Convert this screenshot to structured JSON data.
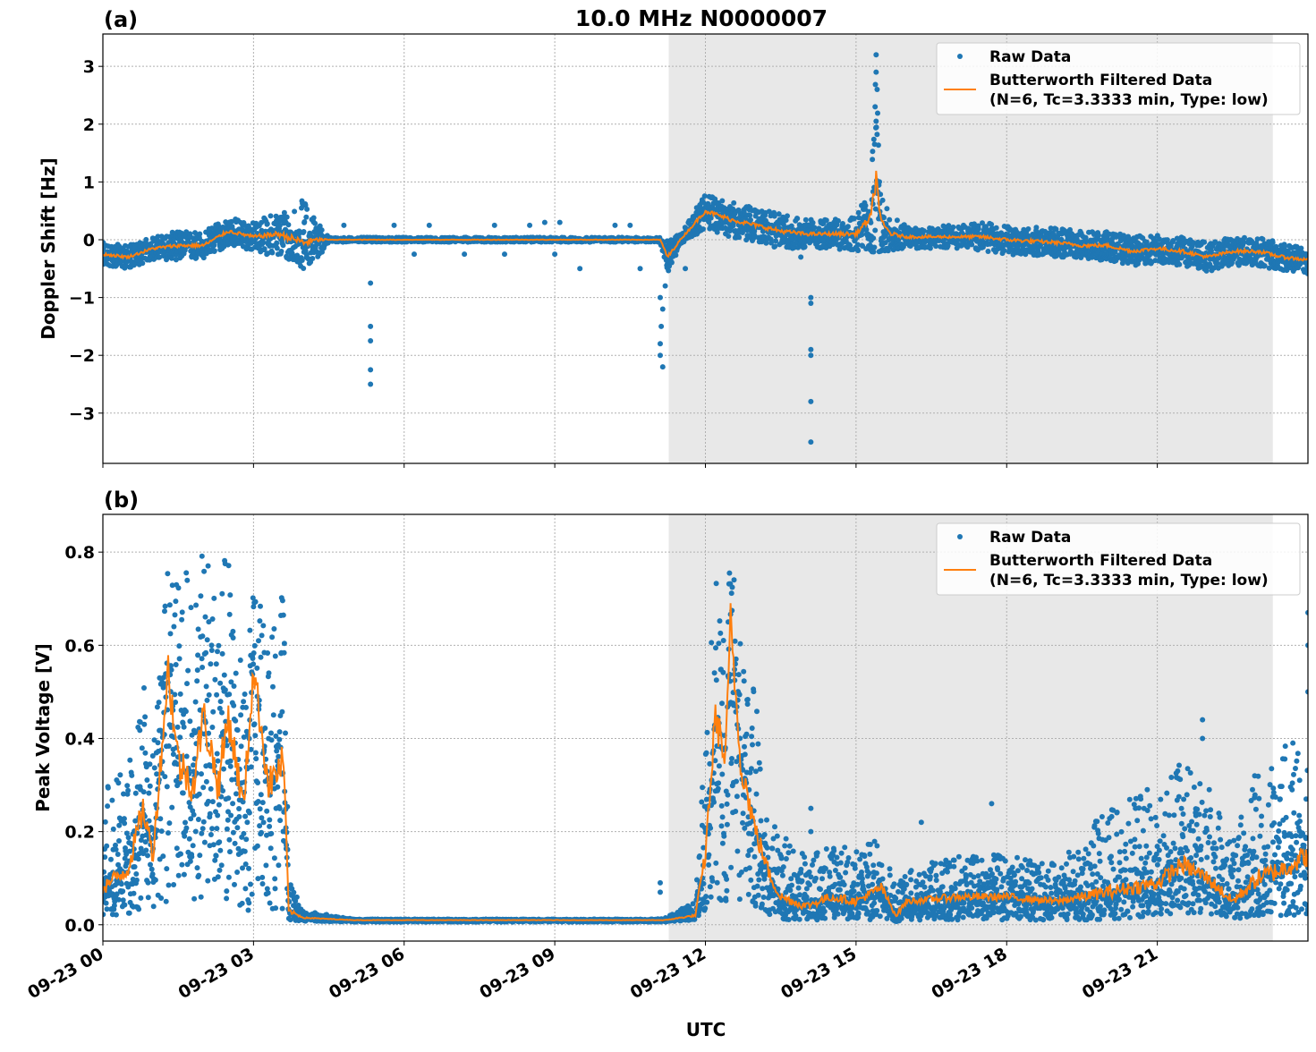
{
  "chart_data": {
    "type": "scatter+line",
    "title": "10.0 MHz N0000007",
    "xlabel": "UTC",
    "x_unit": "hours since 09-23 00 UTC",
    "xlim": [
      0,
      24
    ],
    "xticks": [
      0,
      3,
      6,
      9,
      12,
      15,
      18,
      21
    ],
    "xtick_labels": [
      "09-23 00",
      "09-23 03",
      "09-23 06",
      "09-23 09",
      "09-23 12",
      "09-23 15",
      "09-23 18",
      "09-23 21"
    ],
    "shaded_region": [
      11.27,
      23.3
    ],
    "colors": {
      "raw": "#1f77b4",
      "filtered": "#ff7f0e",
      "shade": "#e8e8e8",
      "grid": "#b0b0b0"
    },
    "grid": true,
    "legend_placement": "top-right",
    "legend": [
      "Raw Data",
      "Butterworth Filtered Data",
      "(N=6, Tc=3.3333 min, Type: low)"
    ],
    "panels": [
      {
        "label": "(a)",
        "ylabel": "Doppler Shift [Hz]",
        "ylim": [
          -3.87,
          3.56
        ],
        "yticks": [
          -3,
          -2,
          -1,
          0,
          1,
          2,
          3
        ],
        "ytick_labels": [
          "−3",
          "−2",
          "−1",
          "0",
          "1",
          "2",
          "3"
        ],
        "t": [
          0,
          0.5,
          1,
          1.5,
          2,
          2.5,
          3,
          3.5,
          4,
          4.3,
          4.5,
          5,
          6,
          7,
          8,
          9,
          10,
          11,
          11.1,
          11.25,
          11.5,
          12,
          12.5,
          13,
          13.5,
          14,
          14.5,
          15,
          15.3,
          15.4,
          15.5,
          15.7,
          16,
          17,
          17.5,
          18,
          19,
          19.5,
          20,
          20.5,
          21,
          21.5,
          22,
          22.5,
          23,
          23.5,
          24
        ],
        "filtered": [
          -0.25,
          -0.3,
          -0.15,
          -0.1,
          -0.1,
          0.15,
          0.05,
          0.1,
          -0.05,
          0.0,
          0.0,
          0.0,
          0.0,
          0.0,
          0.0,
          0.0,
          0.0,
          0.0,
          0.0,
          -0.3,
          0.0,
          0.5,
          0.35,
          0.25,
          0.15,
          0.1,
          0.1,
          0.1,
          0.4,
          1.1,
          0.3,
          0.1,
          0.05,
          0.05,
          0.05,
          0.0,
          -0.05,
          -0.1,
          -0.1,
          -0.2,
          -0.15,
          -0.2,
          -0.3,
          -0.2,
          -0.2,
          -0.3,
          -0.35
        ],
        "raw_low": [
          -0.45,
          -0.5,
          -0.35,
          -0.35,
          -0.35,
          -0.1,
          -0.2,
          -0.3,
          -0.5,
          -0.3,
          -0.04,
          -0.04,
          -0.04,
          -0.04,
          -0.04,
          -0.04,
          -0.04,
          -0.04,
          -0.04,
          -0.6,
          -0.1,
          0.2,
          0.05,
          -0.05,
          -0.15,
          -0.15,
          -0.15,
          -0.2,
          -0.2,
          -0.3,
          -0.2,
          -0.2,
          -0.15,
          -0.15,
          -0.2,
          -0.25,
          -0.3,
          -0.35,
          -0.35,
          -0.45,
          -0.4,
          -0.45,
          -0.55,
          -0.45,
          -0.45,
          -0.55,
          -0.6
        ],
        "raw_high": [
          -0.05,
          -0.1,
          0.05,
          0.15,
          0.15,
          0.4,
          0.3,
          0.5,
          0.7,
          0.3,
          0.04,
          0.04,
          0.04,
          0.04,
          0.04,
          0.04,
          0.04,
          0.04,
          0.04,
          0.0,
          0.1,
          0.8,
          0.65,
          0.55,
          0.45,
          0.35,
          0.35,
          0.4,
          1.0,
          3.0,
          0.8,
          0.4,
          0.25,
          0.25,
          0.3,
          0.25,
          0.2,
          0.15,
          0.15,
          0.05,
          0.1,
          0.05,
          -0.05,
          0.05,
          0.05,
          -0.05,
          -0.1
        ],
        "outliers": [
          [
            5.33,
            -2.5
          ],
          [
            5.33,
            -2.25
          ],
          [
            5.33,
            -1.75
          ],
          [
            5.33,
            -1.5
          ],
          [
            5.33,
            -0.75
          ],
          [
            11.15,
            -2.2
          ],
          [
            11.1,
            -2.0
          ],
          [
            11.1,
            -1.8
          ],
          [
            11.12,
            -1.5
          ],
          [
            11.15,
            -1.2
          ],
          [
            11.1,
            -1.0
          ],
          [
            11.2,
            -0.8
          ],
          [
            14.1,
            -3.5
          ],
          [
            14.1,
            -2.8
          ],
          [
            14.1,
            -2.0
          ],
          [
            14.1,
            -1.9
          ],
          [
            14.1,
            -1.1
          ],
          [
            14.1,
            -1.0
          ],
          [
            15.4,
            3.2
          ],
          [
            15.4,
            2.9
          ],
          [
            15.42,
            2.6
          ],
          [
            15.38,
            2.3
          ],
          [
            4.8,
            0.25
          ],
          [
            5.8,
            0.25
          ],
          [
            6.5,
            0.25
          ],
          [
            7.2,
            -0.25
          ],
          [
            7.8,
            0.25
          ],
          [
            8.5,
            0.25
          ],
          [
            8.8,
            0.3
          ],
          [
            9.1,
            0.3
          ],
          [
            9.5,
            -0.5
          ],
          [
            10.2,
            0.25
          ],
          [
            10.5,
            0.25
          ],
          [
            6.2,
            -0.25
          ],
          [
            8.0,
            -0.25
          ],
          [
            9.0,
            -0.25
          ],
          [
            10.7,
            -0.5
          ],
          [
            11.6,
            -0.5
          ],
          [
            13.9,
            -0.3
          ]
        ]
      },
      {
        "label": "(b)",
        "ylabel": "Peak Voltage [V]",
        "ylim": [
          -0.035,
          0.881
        ],
        "yticks": [
          0.0,
          0.2,
          0.4,
          0.6,
          0.8
        ],
        "ytick_labels": [
          "0.0",
          "0.2",
          "0.4",
          "0.6",
          "0.8"
        ],
        "t": [
          0,
          0.5,
          0.8,
          1,
          1.3,
          1.5,
          1.8,
          2,
          2.3,
          2.5,
          2.8,
          3,
          3.3,
          3.6,
          3.7,
          4,
          5,
          6,
          7,
          8,
          9,
          10,
          11,
          11.2,
          11.8,
          12,
          12.2,
          12.4,
          12.5,
          12.7,
          13,
          13.3,
          13.5,
          14,
          14.5,
          15,
          15.5,
          15.8,
          16,
          17,
          18,
          19,
          20,
          21,
          21.5,
          22,
          22.5,
          23,
          23.5,
          24
        ],
        "filtered": [
          0.08,
          0.12,
          0.25,
          0.15,
          0.55,
          0.35,
          0.3,
          0.45,
          0.3,
          0.45,
          0.25,
          0.55,
          0.3,
          0.35,
          0.03,
          0.015,
          0.01,
          0.01,
          0.01,
          0.01,
          0.01,
          0.01,
          0.01,
          0.01,
          0.02,
          0.15,
          0.45,
          0.35,
          0.65,
          0.35,
          0.2,
          0.1,
          0.06,
          0.04,
          0.06,
          0.05,
          0.08,
          0.02,
          0.05,
          0.06,
          0.06,
          0.05,
          0.07,
          0.09,
          0.13,
          0.1,
          0.05,
          0.1,
          0.12,
          0.15
        ],
        "raw_low": [
          0.02,
          0.02,
          0.03,
          0.03,
          0.05,
          0.05,
          0.05,
          0.05,
          0.05,
          0.05,
          0.03,
          0.03,
          0.03,
          0.03,
          0.01,
          0.008,
          0.006,
          0.006,
          0.006,
          0.006,
          0.006,
          0.006,
          0.006,
          0.006,
          0.01,
          0.03,
          0.05,
          0.05,
          0.05,
          0.05,
          0.04,
          0.02,
          0.01,
          0.01,
          0.01,
          0.01,
          0.01,
          0.005,
          0.01,
          0.01,
          0.01,
          0.01,
          0.01,
          0.02,
          0.02,
          0.02,
          0.01,
          0.02,
          0.02,
          0.02
        ],
        "raw_high": [
          0.3,
          0.35,
          0.55,
          0.4,
          0.83,
          0.8,
          0.75,
          0.8,
          0.75,
          0.83,
          0.6,
          0.72,
          0.65,
          0.72,
          0.1,
          0.03,
          0.012,
          0.012,
          0.012,
          0.012,
          0.012,
          0.012,
          0.012,
          0.015,
          0.05,
          0.4,
          0.75,
          0.6,
          0.84,
          0.6,
          0.5,
          0.25,
          0.2,
          0.15,
          0.18,
          0.16,
          0.19,
          0.08,
          0.12,
          0.15,
          0.15,
          0.13,
          0.25,
          0.3,
          0.35,
          0.3,
          0.18,
          0.35,
          0.38,
          0.45
        ],
        "outliers": [
          [
            11.1,
            0.09
          ],
          [
            11.1,
            0.07
          ],
          [
            14.1,
            0.25
          ],
          [
            14.1,
            0.2
          ],
          [
            21.9,
            0.44
          ],
          [
            21.9,
            0.4
          ],
          [
            23.7,
            0.39
          ],
          [
            24,
            0.67
          ],
          [
            24,
            0.6
          ],
          [
            24,
            0.5
          ],
          [
            20.8,
            0.29
          ],
          [
            17.7,
            0.26
          ],
          [
            16.3,
            0.22
          ]
        ]
      }
    ]
  }
}
